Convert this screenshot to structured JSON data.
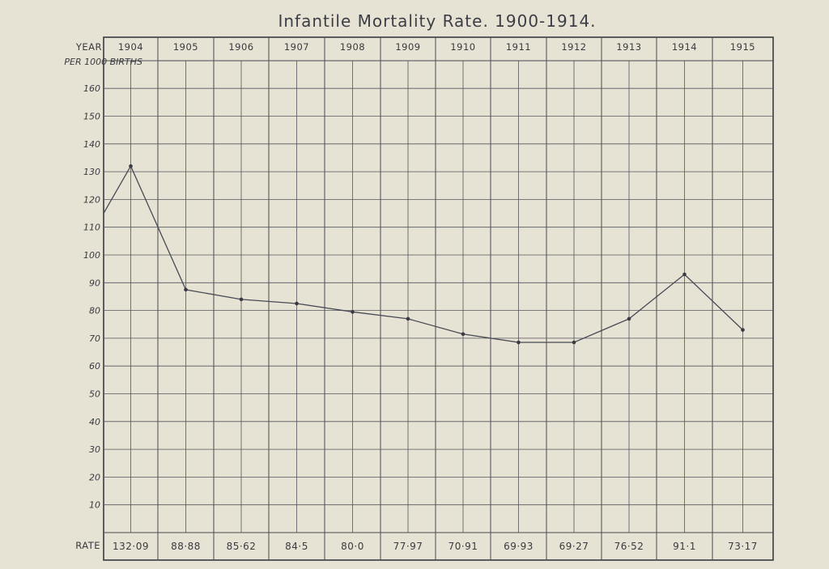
{
  "chart_data": {
    "type": "line",
    "title": "Infantile Mortality Rate. 1900-1914.",
    "header_label": "YEAR",
    "ylabel": "PER 1000 BIRTHS",
    "rate_label": "RATE",
    "categories": [
      "1904",
      "1905",
      "1906",
      "1907",
      "1908",
      "1909",
      "1910",
      "1911",
      "1912",
      "1913",
      "1914",
      "1915"
    ],
    "rates": [
      "132·09",
      "88·88",
      "85·62",
      "84·5",
      "80·0",
      "77·97",
      "70·91",
      "69·93",
      "69·27",
      "76·52",
      "91·1",
      "73·17"
    ],
    "y_ticks": [
      10,
      20,
      30,
      40,
      50,
      60,
      70,
      80,
      90,
      100,
      110,
      120,
      130,
      140,
      150,
      160
    ],
    "ylim": [
      0,
      170
    ],
    "line_start_value": 115,
    "series": [
      {
        "values": [
          132,
          87.5,
          84,
          82.5,
          79.5,
          77,
          71.5,
          68.5,
          68.5,
          77,
          93,
          73
        ]
      }
    ],
    "grid": true,
    "colors": {
      "background": "#e6e3d4",
      "ink": "#3a3a42"
    }
  }
}
